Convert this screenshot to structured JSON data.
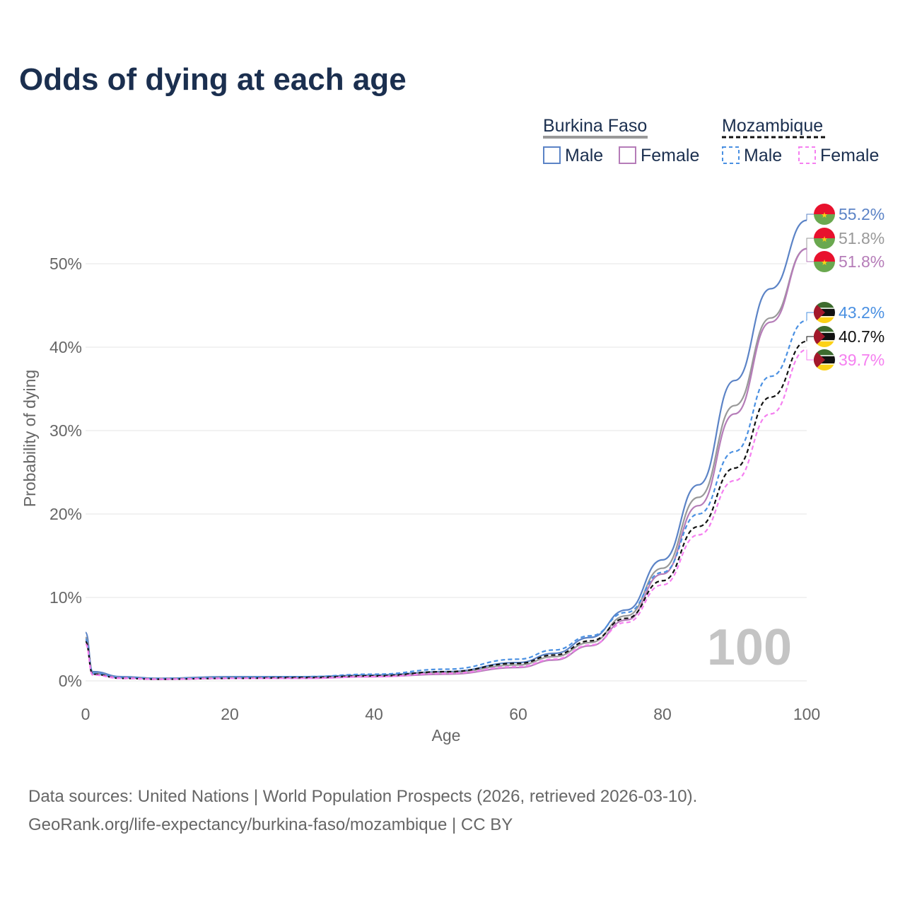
{
  "title": "Odds of dying at each age",
  "legend": {
    "groups": [
      {
        "country": "Burkina Faso",
        "male": "Male",
        "female": "Female"
      },
      {
        "country": "Mozambique",
        "male": "Male",
        "female": "Female"
      }
    ]
  },
  "colors": {
    "bf_male": "#5b83c6",
    "bf_female": "#b57cb8",
    "bf_total": "#999999",
    "mz_male": "#4a90e2",
    "mz_female": "#f57ff0",
    "mz_total": "#111111",
    "title": "#1b2f4f"
  },
  "age_display": "100",
  "source": {
    "line1": "Data sources: United Nations | World Population Prospects (2026, retrieved 2026-03-10).",
    "line2": "GeoRank.org/life-expectancy/burkina-faso/mozambique | CC BY"
  },
  "chart_data": {
    "type": "line",
    "xlabel": "Age",
    "ylabel": "Probability of dying",
    "xlim": [
      0,
      100
    ],
    "ylim": [
      0,
      55
    ],
    "xticks": [
      0,
      20,
      40,
      60,
      80,
      100
    ],
    "yticks": [
      0,
      10,
      20,
      30,
      40,
      50
    ],
    "ytick_labels": [
      "0%",
      "10%",
      "20%",
      "30%",
      "40%",
      "50%"
    ],
    "series": [
      {
        "key": "bf_male",
        "name": "Burkina Faso Male",
        "dashed": false,
        "end_label": "55.2%",
        "x": [
          0,
          1,
          5,
          10,
          20,
          30,
          40,
          50,
          60,
          65,
          70,
          75,
          80,
          85,
          90,
          95,
          100
        ],
        "values": [
          5.8,
          1.1,
          0.5,
          0.3,
          0.5,
          0.5,
          0.7,
          1.1,
          2.2,
          3.3,
          5.2,
          8.5,
          14.5,
          23.5,
          36.0,
          47.0,
          55.2
        ]
      },
      {
        "key": "bf_total",
        "name": "Burkina Faso Total",
        "dashed": false,
        "end_label": "51.8%",
        "x": [
          0,
          1,
          5,
          10,
          20,
          30,
          40,
          50,
          60,
          65,
          70,
          75,
          80,
          85,
          90,
          95,
          100
        ],
        "values": [
          5.2,
          0.9,
          0.4,
          0.3,
          0.4,
          0.4,
          0.6,
          1.0,
          1.9,
          2.9,
          4.6,
          7.8,
          13.5,
          22.0,
          33.0,
          43.5,
          51.8
        ]
      },
      {
        "key": "bf_female",
        "name": "Burkina Faso Female",
        "dashed": false,
        "end_label": "51.8%",
        "x": [
          0,
          1,
          5,
          10,
          20,
          30,
          40,
          50,
          60,
          65,
          70,
          75,
          80,
          85,
          90,
          95,
          100
        ],
        "values": [
          4.8,
          0.8,
          0.4,
          0.2,
          0.3,
          0.3,
          0.5,
          0.8,
          1.6,
          2.5,
          4.2,
          7.3,
          12.8,
          21.0,
          32.0,
          43.0,
          51.8
        ]
      },
      {
        "key": "mz_male",
        "name": "Mozambique Male",
        "dashed": true,
        "end_label": "43.2%",
        "x": [
          0,
          1,
          5,
          10,
          20,
          30,
          40,
          50,
          60,
          65,
          70,
          75,
          80,
          85,
          90,
          95,
          100
        ],
        "values": [
          5.0,
          0.9,
          0.4,
          0.3,
          0.4,
          0.5,
          0.8,
          1.4,
          2.6,
          3.7,
          5.4,
          8.2,
          13.0,
          20.0,
          27.5,
          36.5,
          43.2
        ]
      },
      {
        "key": "mz_total",
        "name": "Mozambique Total",
        "dashed": true,
        "end_label": "40.7%",
        "x": [
          0,
          1,
          5,
          10,
          20,
          30,
          40,
          50,
          60,
          65,
          70,
          75,
          80,
          85,
          90,
          95,
          100
        ],
        "values": [
          4.7,
          0.8,
          0.3,
          0.2,
          0.3,
          0.4,
          0.6,
          1.1,
          2.1,
          3.1,
          4.8,
          7.5,
          12.0,
          18.5,
          25.5,
          34.0,
          40.7
        ]
      },
      {
        "key": "mz_female",
        "name": "Mozambique Female",
        "dashed": true,
        "end_label": "39.7%",
        "x": [
          0,
          1,
          5,
          10,
          20,
          30,
          40,
          50,
          60,
          65,
          70,
          75,
          80,
          85,
          90,
          95,
          100
        ],
        "values": [
          4.4,
          0.7,
          0.3,
          0.2,
          0.3,
          0.3,
          0.5,
          0.9,
          1.7,
          2.6,
          4.3,
          7.0,
          11.5,
          17.5,
          24.0,
          32.0,
          39.7
        ]
      }
    ]
  }
}
